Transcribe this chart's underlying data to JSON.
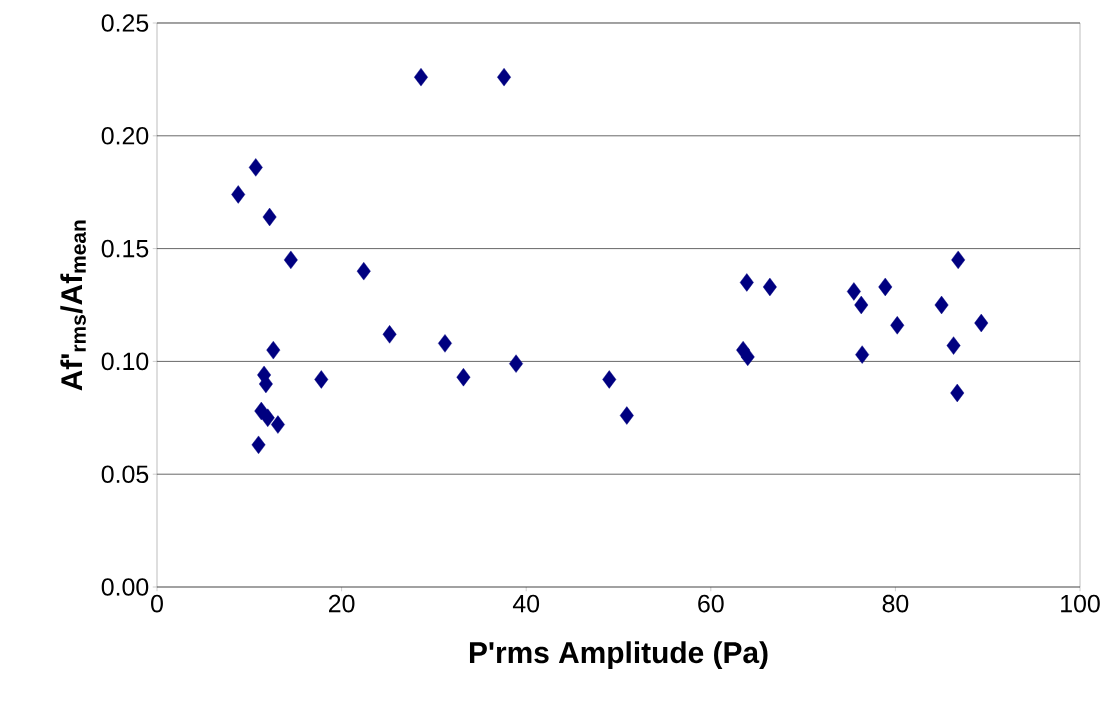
{
  "chart_data": {
    "type": "scatter",
    "xlabel": "P'rms Amplitude (Pa)",
    "ylabel": "Af'$_{rms}$/Af$_{mean}$",
    "xlim": [
      0,
      100
    ],
    "ylim": [
      0,
      0.25
    ],
    "xticks": [
      0,
      20,
      40,
      60,
      80,
      100
    ],
    "yticks": [
      {
        "value": 0,
        "label": "0.00"
      },
      {
        "value": 0.05,
        "label": "0.05"
      },
      {
        "value": 0.1,
        "label": "0.10"
      },
      {
        "value": 0.15,
        "label": "0.15"
      },
      {
        "value": 0.2,
        "label": "0.20"
      },
      {
        "value": 0.25,
        "label": "0.25"
      }
    ],
    "grid": "y",
    "marker": "diamond",
    "series": [
      {
        "color": "#000080",
        "x": [
          8.8,
          10.7,
          12.2,
          14.5,
          22.4,
          25.2,
          28.6,
          37.6,
          31.2,
          33.2,
          38.9,
          49.0,
          50.9,
          17.8,
          11.6,
          11.8,
          12.6,
          11.3,
          12.0,
          13.1,
          11.0,
          63.5,
          64.0,
          63.9,
          66.4,
          75.5,
          76.3,
          76.4,
          78.9,
          80.2,
          85.0,
          86.3,
          86.8,
          86.7,
          89.3
        ],
        "values": [
          0.174,
          0.186,
          0.164,
          0.145,
          0.14,
          0.112,
          0.226,
          0.226,
          0.108,
          0.093,
          0.099,
          0.092,
          0.076,
          0.092,
          0.094,
          0.09,
          0.105,
          0.078,
          0.075,
          0.072,
          0.063,
          0.105,
          0.102,
          0.135,
          0.133,
          0.131,
          0.125,
          0.103,
          0.133,
          0.116,
          0.125,
          0.107,
          0.145,
          0.086,
          0.117
        ]
      }
    ]
  }
}
